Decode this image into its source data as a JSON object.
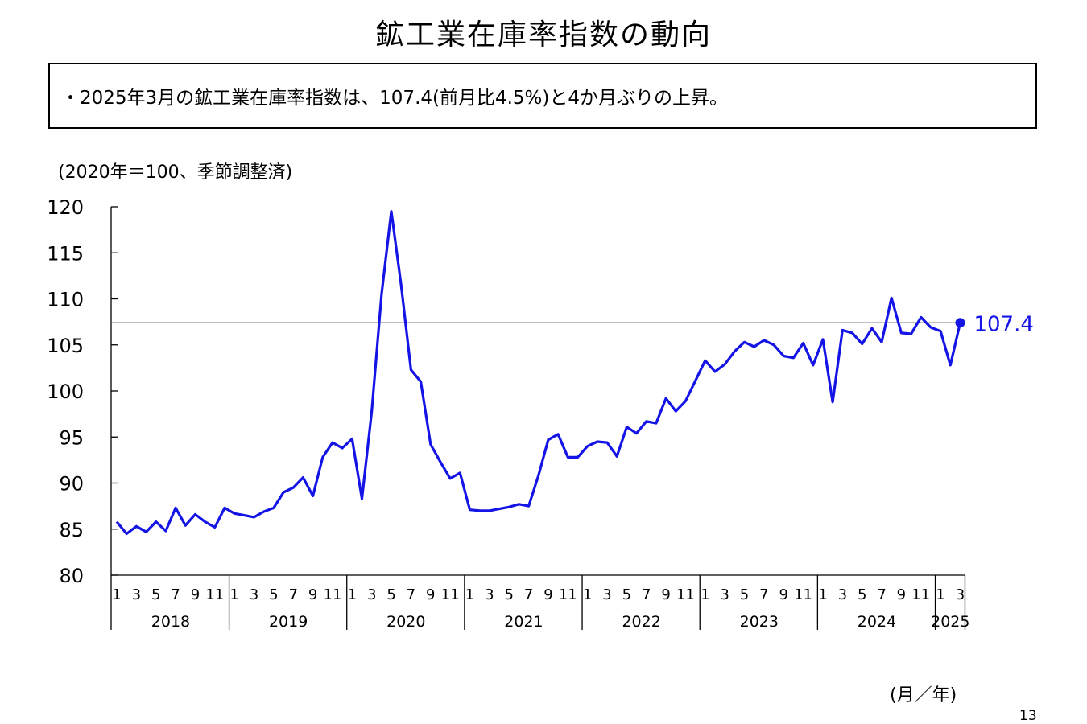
{
  "title": "鉱工業在庫率指数の動向",
  "summary": "・2025年3月の鉱工業在庫率指数は、107.4(前月比4.5%)と4か月ぶりの上昇。",
  "unit_note": "(2020年＝100、季節調整済)",
  "x_unit_note": "(月／年)",
  "page_number": "13",
  "colors": {
    "line": "#1414e6",
    "reference": "#808080",
    "axis": "#000000"
  },
  "chart_data": {
    "type": "line",
    "ylim": [
      80,
      120
    ],
    "yticks": [
      "80",
      "85",
      "90",
      "95",
      "100",
      "105",
      "110",
      "115",
      "120"
    ],
    "month_tick_labels": [
      "1",
      "3",
      "5",
      "7",
      "9",
      "11"
    ],
    "years": [
      "2018",
      "2019",
      "2020",
      "2021",
      "2022",
      "2023",
      "2024",
      "2025"
    ],
    "reference_line": 107.4,
    "last_value_label": "107.4",
    "series": [
      {
        "values": [
          85.8,
          84.5,
          85.3,
          84.7,
          85.8,
          84.8,
          87.3,
          85.4,
          86.6,
          85.8,
          85.2,
          87.3,
          86.7,
          86.5,
          86.3,
          86.9,
          87.3,
          89.0,
          89.5,
          90.6,
          88.6,
          92.8,
          94.4,
          93.8,
          94.8,
          88.3,
          97.8,
          110.5,
          119.5,
          111.5,
          102.3,
          101.0,
          94.2,
          92.3,
          90.5,
          91.1,
          87.1,
          87.0,
          87.0,
          87.2,
          87.4,
          87.7,
          87.5,
          90.8,
          94.7,
          95.3,
          92.8,
          92.8,
          94.0,
          94.5,
          94.4,
          92.9,
          96.1,
          95.4,
          96.7,
          96.5,
          99.2,
          97.8,
          98.9,
          101.1,
          103.3,
          102.1,
          102.9,
          104.3,
          105.3,
          104.8,
          105.5,
          105.0,
          103.8,
          103.6,
          105.2,
          102.8,
          105.6,
          98.8,
          106.6,
          106.3,
          105.1,
          106.8,
          105.3,
          110.1,
          106.3,
          106.2,
          108.0,
          106.9,
          106.5,
          102.8,
          107.4
        ]
      }
    ]
  }
}
